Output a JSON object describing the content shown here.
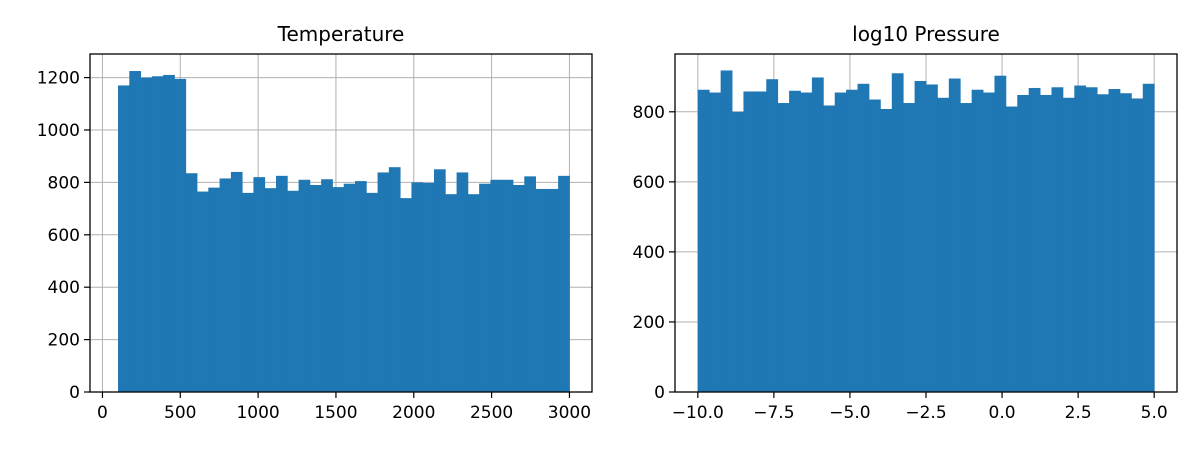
{
  "chart_data": [
    {
      "type": "bar",
      "title": "Temperature",
      "xlabel": "",
      "ylabel": "",
      "xlim": [
        -80,
        3145
      ],
      "ylim": [
        0,
        1290
      ],
      "bin_range": [
        100,
        3000
      ],
      "bin_count": 40,
      "xticks": [
        0,
        500,
        1000,
        1500,
        2000,
        2500,
        3000
      ],
      "xtick_labels": [
        "0",
        "500",
        "1000",
        "1500",
        "2000",
        "2500",
        "3000"
      ],
      "yticks": [
        0,
        200,
        400,
        600,
        800,
        1000,
        1200
      ],
      "ytick_labels": [
        "0",
        "200",
        "400",
        "600",
        "800",
        "1000",
        "1200"
      ],
      "values": [
        1170,
        1225,
        1200,
        1205,
        1210,
        1195,
        835,
        765,
        780,
        815,
        840,
        760,
        820,
        778,
        825,
        768,
        810,
        790,
        812,
        782,
        795,
        805,
        760,
        838,
        858,
        740,
        800,
        798,
        850,
        755,
        838,
        755,
        795,
        810,
        810,
        790,
        823,
        775,
        775,
        825
      ],
      "color": "#1f77b4",
      "grid": true,
      "legend": "none"
    },
    {
      "type": "bar",
      "title": "log10 Pressure",
      "xlabel": "",
      "ylabel": "",
      "xlim": [
        -10.75,
        5.75
      ],
      "ylim": [
        0,
        965
      ],
      "bin_range": [
        -10,
        5
      ],
      "bin_count": 40,
      "xticks": [
        -10,
        -7.5,
        -5,
        -2.5,
        0,
        2.5,
        5
      ],
      "xtick_labels": [
        "−10.0",
        "−7.5",
        "−5.0",
        "−2.5",
        "0.0",
        "2.5",
        "5.0"
      ],
      "yticks": [
        0,
        200,
        400,
        600,
        800
      ],
      "ytick_labels": [
        "0",
        "200",
        "400",
        "600",
        "800"
      ],
      "values": [
        863,
        855,
        918,
        800,
        858,
        858,
        893,
        825,
        860,
        855,
        898,
        818,
        855,
        863,
        880,
        835,
        808,
        910,
        825,
        888,
        878,
        840,
        895,
        825,
        863,
        855,
        903,
        815,
        848,
        868,
        848,
        870,
        840,
        875,
        870,
        850,
        865,
        853,
        838,
        880
      ],
      "color": "#1f77b4",
      "grid": true,
      "legend": "none"
    }
  ]
}
